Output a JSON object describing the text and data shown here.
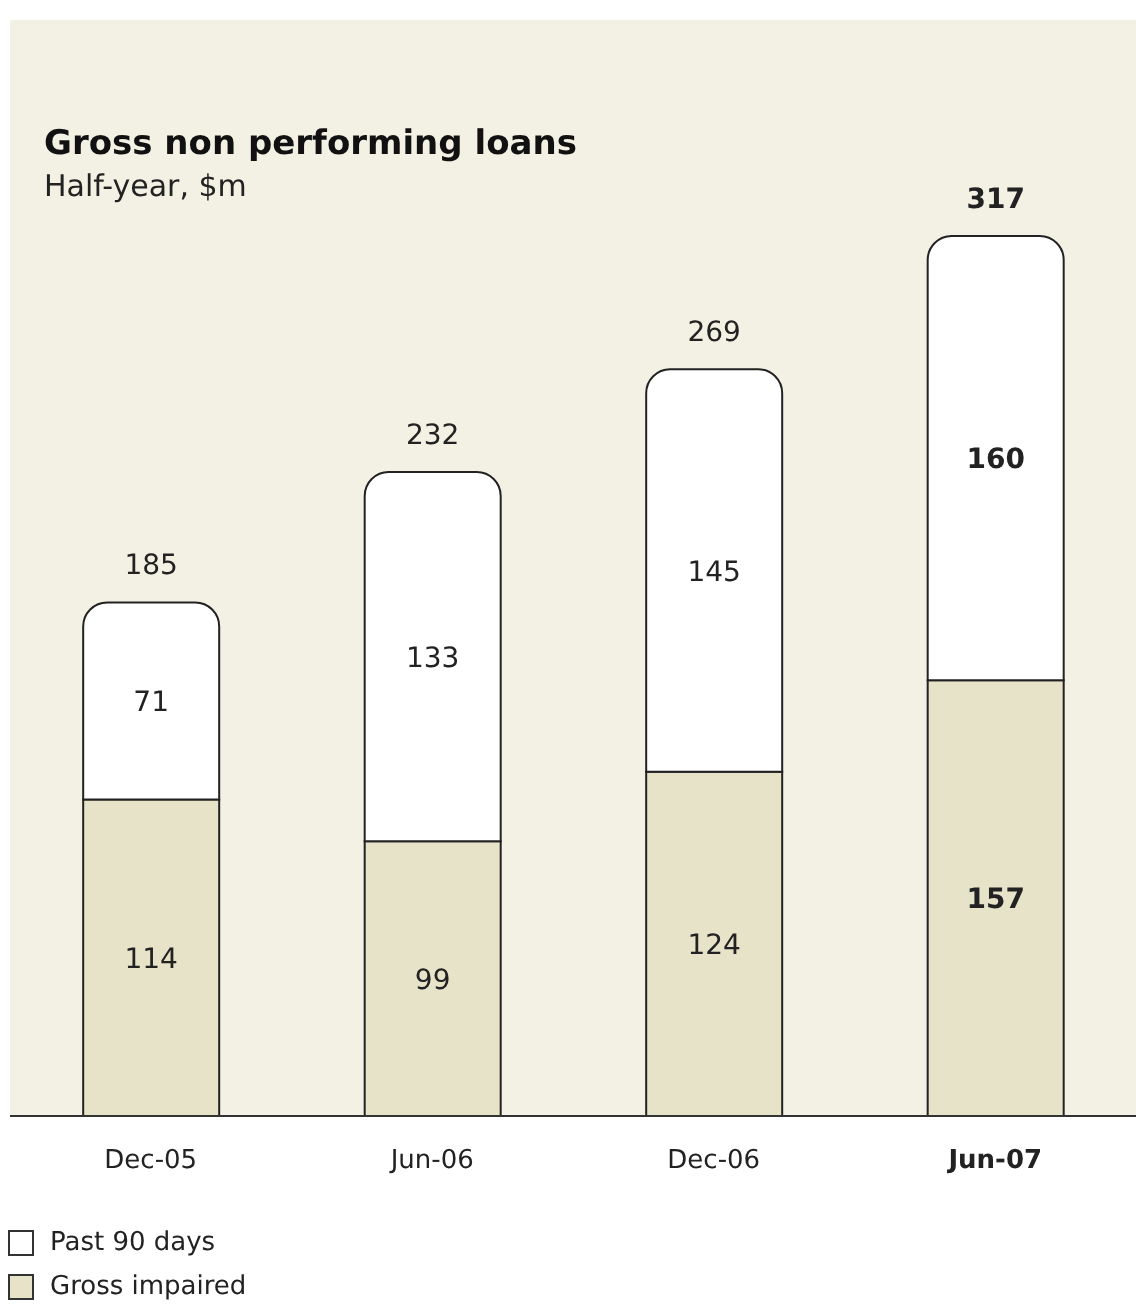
{
  "chart_data": {
    "type": "bar",
    "title": "Gross non performing loans",
    "subtitle": "Half-year, $m",
    "categories": [
      "Dec-05",
      "Jun-06",
      "Dec-06",
      "Jun-07"
    ],
    "stacked": true,
    "series": [
      {
        "name": "Gross impaired",
        "color": "#e6e3c8",
        "values": [
          114,
          99,
          124,
          157
        ]
      },
      {
        "name": "Past 90 days",
        "color": "#ffffff",
        "values": [
          71,
          133,
          145,
          160
        ]
      }
    ],
    "totals": [
      "185",
      "232",
      "269",
      "317"
    ],
    "data_labels": true,
    "legend": "bottom left",
    "grid": false
  }
}
